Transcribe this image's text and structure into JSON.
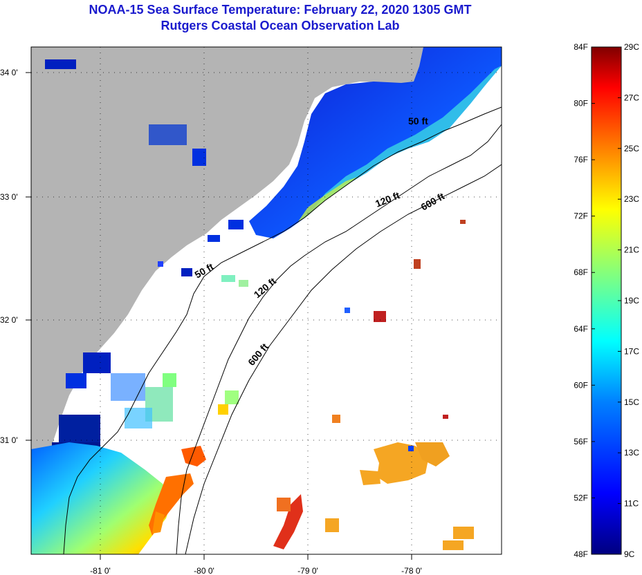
{
  "header": {
    "title": "NOAA-15 Sea Surface Temperature:  February 22, 2020 1305 GMT",
    "subtitle": "Rutgers Coastal Ocean Observation Lab"
  },
  "map": {
    "lon_labels": [
      "-81 0'",
      "-80 0'",
      "-79 0'",
      "-78 0'"
    ],
    "lat_labels": [
      "34 0'",
      "33 0'",
      "32 0'",
      "31 0'"
    ],
    "contour_labels": [
      "50 ft",
      "120 ft",
      "600 ft",
      "50 ft",
      "120 ft",
      "600 ft"
    ],
    "land_color": "#b4b4b4",
    "water_nodata_color": "#ffffff"
  },
  "colorbar": {
    "fahrenheit_labels": [
      "84F",
      "80F",
      "76F",
      "72F",
      "68F",
      "64F",
      "60F",
      "56F",
      "52F",
      "48F"
    ],
    "celsius_labels": [
      "29C",
      "27C",
      "25C",
      "23C",
      "21C",
      "19C",
      "17C",
      "15C",
      "13C",
      "11C",
      "9C"
    ],
    "gradient_colors": [
      "#800000",
      "#ff0000",
      "#ff8000",
      "#ffff00",
      "#80ff80",
      "#00ffff",
      "#0080ff",
      "#0000ff",
      "#000080"
    ]
  }
}
